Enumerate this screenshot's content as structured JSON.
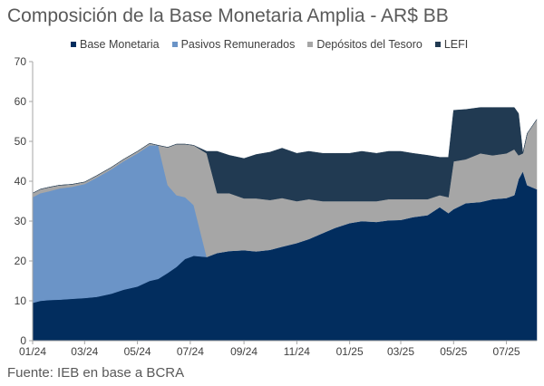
{
  "title": "Composición de la Base Monetaria Amplia - AR$ BB",
  "source": "Fuente: IEB en base a BCRA",
  "colors": {
    "base_monetaria": "#022d5e",
    "pasivos_remunerados": "#6b94c7",
    "depositos_tesoro": "#a6a6a6",
    "lefi": "#213a52",
    "axis": "#a6a6a6"
  },
  "chart_data": {
    "type": "area",
    "stacked": true,
    "title": "Composición de la Base Monetaria Amplia - AR$ BB",
    "xlabel": "",
    "ylabel": "",
    "ylim": [
      0,
      70
    ],
    "yticks": [
      0,
      10,
      20,
      30,
      40,
      50,
      60,
      70
    ],
    "xlim": [
      "2024-01-01",
      "2025-08-05"
    ],
    "xticks": [
      "01/24",
      "03/24",
      "05/24",
      "07/24",
      "09/24",
      "11/24",
      "01/25",
      "03/25",
      "05/25",
      "07/25"
    ],
    "xtick_dates": [
      "2024-01-01",
      "2024-03-01",
      "2024-05-01",
      "2024-07-01",
      "2024-09-01",
      "2024-11-01",
      "2025-01-01",
      "2025-03-01",
      "2025-05-01",
      "2025-07-01"
    ],
    "grid": false,
    "legend": "top",
    "series": [
      {
        "name": "Base Monetaria",
        "color": "#022d5e",
        "points": [
          [
            "2024-01-01",
            9.5
          ],
          [
            "2024-01-10",
            10.0
          ],
          [
            "2024-01-20",
            10.2
          ],
          [
            "2024-02-01",
            10.3
          ],
          [
            "2024-02-15",
            10.5
          ],
          [
            "2024-03-01",
            10.7
          ],
          [
            "2024-03-15",
            11.0
          ],
          [
            "2024-04-01",
            11.8
          ],
          [
            "2024-04-15",
            12.8
          ],
          [
            "2024-05-01",
            13.6
          ],
          [
            "2024-05-15",
            15.0
          ],
          [
            "2024-05-25",
            15.5
          ],
          [
            "2024-06-05",
            17.0
          ],
          [
            "2024-06-15",
            18.5
          ],
          [
            "2024-06-25",
            20.5
          ],
          [
            "2024-07-05",
            21.3
          ],
          [
            "2024-07-20",
            21.0
          ],
          [
            "2024-08-01",
            22.0
          ],
          [
            "2024-08-15",
            22.5
          ],
          [
            "2024-09-01",
            22.7
          ],
          [
            "2024-09-15",
            22.4
          ],
          [
            "2024-10-01",
            22.8
          ],
          [
            "2024-10-15",
            23.6
          ],
          [
            "2024-11-01",
            24.5
          ],
          [
            "2024-11-15",
            25.5
          ],
          [
            "2024-12-01",
            27.0
          ],
          [
            "2024-12-15",
            28.3
          ],
          [
            "2025-01-01",
            29.5
          ],
          [
            "2025-01-15",
            30.0
          ],
          [
            "2025-02-01",
            29.8
          ],
          [
            "2025-02-15",
            30.2
          ],
          [
            "2025-03-01",
            30.3
          ],
          [
            "2025-03-15",
            31.0
          ],
          [
            "2025-04-01",
            31.5
          ],
          [
            "2025-04-15",
            33.5
          ],
          [
            "2025-04-25",
            32.0
          ],
          [
            "2025-05-01",
            33.0
          ],
          [
            "2025-05-15",
            34.5
          ],
          [
            "2025-06-01",
            34.8
          ],
          [
            "2025-06-15",
            35.5
          ],
          [
            "2025-07-01",
            35.8
          ],
          [
            "2025-07-10",
            36.5
          ],
          [
            "2025-07-15",
            40.5
          ],
          [
            "2025-07-20",
            42.5
          ],
          [
            "2025-07-25",
            39.0
          ],
          [
            "2025-08-05",
            38.0
          ]
        ]
      },
      {
        "name": "Pasivos Remunerados",
        "color": "#6b94c7",
        "points": [
          [
            "2024-01-01",
            26.5
          ],
          [
            "2024-01-10",
            27.0
          ],
          [
            "2024-01-20",
            27.3
          ],
          [
            "2024-02-01",
            27.9
          ],
          [
            "2024-02-15",
            28.1
          ],
          [
            "2024-03-01",
            28.6
          ],
          [
            "2024-03-15",
            29.9
          ],
          [
            "2024-04-01",
            31.2
          ],
          [
            "2024-04-15",
            32.2
          ],
          [
            "2024-05-01",
            33.4
          ],
          [
            "2024-05-15",
            34.0
          ],
          [
            "2024-05-25",
            33.5
          ],
          [
            "2024-06-05",
            22.0
          ],
          [
            "2024-06-15",
            18.0
          ],
          [
            "2024-06-25",
            15.5
          ],
          [
            "2024-07-05",
            12.7
          ],
          [
            "2024-07-20",
            0
          ],
          [
            "2024-08-01",
            0
          ],
          [
            "2024-08-15",
            0
          ],
          [
            "2024-09-01",
            0
          ],
          [
            "2024-09-15",
            0
          ],
          [
            "2024-10-01",
            0
          ],
          [
            "2024-10-15",
            0
          ],
          [
            "2024-11-01",
            0
          ],
          [
            "2024-11-15",
            0
          ],
          [
            "2024-12-01",
            0
          ],
          [
            "2024-12-15",
            0
          ],
          [
            "2025-01-01",
            0
          ],
          [
            "2025-01-15",
            0
          ],
          [
            "2025-02-01",
            0
          ],
          [
            "2025-02-15",
            0
          ],
          [
            "2025-03-01",
            0
          ],
          [
            "2025-03-15",
            0
          ],
          [
            "2025-04-01",
            0
          ],
          [
            "2025-04-15",
            0
          ],
          [
            "2025-04-25",
            0
          ],
          [
            "2025-05-01",
            0
          ],
          [
            "2025-05-15",
            0
          ],
          [
            "2025-06-01",
            0
          ],
          [
            "2025-06-15",
            0
          ],
          [
            "2025-07-01",
            0
          ],
          [
            "2025-07-10",
            0
          ],
          [
            "2025-07-15",
            0
          ],
          [
            "2025-07-20",
            0
          ],
          [
            "2025-07-25",
            0
          ],
          [
            "2025-08-05",
            0
          ]
        ]
      },
      {
        "name": "Depósitos del Tesoro",
        "color": "#a6a6a6",
        "points": [
          [
            "2024-01-01",
            1.0
          ],
          [
            "2024-01-10",
            1.0
          ],
          [
            "2024-01-20",
            1.0
          ],
          [
            "2024-02-01",
            0.8
          ],
          [
            "2024-02-15",
            0.6
          ],
          [
            "2024-03-01",
            0.5
          ],
          [
            "2024-03-15",
            0.5
          ],
          [
            "2024-04-01",
            0.5
          ],
          [
            "2024-04-15",
            0.5
          ],
          [
            "2024-05-01",
            0.5
          ],
          [
            "2024-05-15",
            0.5
          ],
          [
            "2024-05-25",
            0.0
          ],
          [
            "2024-06-05",
            9.5
          ],
          [
            "2024-06-15",
            12.8
          ],
          [
            "2024-06-25",
            13.3
          ],
          [
            "2024-07-05",
            15.0
          ],
          [
            "2024-07-20",
            26.0
          ],
          [
            "2024-08-01",
            15.0
          ],
          [
            "2024-08-15",
            14.5
          ],
          [
            "2024-09-01",
            13.0
          ],
          [
            "2024-09-15",
            13.3
          ],
          [
            "2024-10-01",
            12.5
          ],
          [
            "2024-10-15",
            12.2
          ],
          [
            "2024-11-01",
            10.5
          ],
          [
            "2024-11-15",
            10.0
          ],
          [
            "2024-12-01",
            8.0
          ],
          [
            "2024-12-15",
            6.7
          ],
          [
            "2025-01-01",
            5.5
          ],
          [
            "2025-01-15",
            5.0
          ],
          [
            "2025-02-01",
            5.2
          ],
          [
            "2025-02-15",
            5.3
          ],
          [
            "2025-03-01",
            5.2
          ],
          [
            "2025-03-15",
            4.5
          ],
          [
            "2025-04-01",
            4.0
          ],
          [
            "2025-04-15",
            3.0
          ],
          [
            "2025-04-25",
            4.0
          ],
          [
            "2025-05-01",
            12.0
          ],
          [
            "2025-05-15",
            11.0
          ],
          [
            "2025-06-01",
            12.2
          ],
          [
            "2025-06-15",
            11.0
          ],
          [
            "2025-07-01",
            11.2
          ],
          [
            "2025-07-10",
            11.5
          ],
          [
            "2025-07-15",
            6.0
          ],
          [
            "2025-07-20",
            4.5
          ],
          [
            "2025-07-25",
            13.0
          ],
          [
            "2025-08-05",
            17.5
          ]
        ]
      },
      {
        "name": "LEFI",
        "color": "#213a52",
        "points": [
          [
            "2024-01-01",
            0
          ],
          [
            "2024-01-10",
            0
          ],
          [
            "2024-01-20",
            0
          ],
          [
            "2024-02-01",
            0
          ],
          [
            "2024-02-15",
            0
          ],
          [
            "2024-03-01",
            0
          ],
          [
            "2024-03-15",
            0
          ],
          [
            "2024-04-01",
            0
          ],
          [
            "2024-04-15",
            0
          ],
          [
            "2024-05-01",
            0
          ],
          [
            "2024-05-15",
            0
          ],
          [
            "2024-05-25",
            0
          ],
          [
            "2024-06-05",
            0
          ],
          [
            "2024-06-15",
            0
          ],
          [
            "2024-06-25",
            0
          ],
          [
            "2024-07-05",
            0
          ],
          [
            "2024-07-20",
            0.5
          ],
          [
            "2024-08-01",
            10.5
          ],
          [
            "2024-08-15",
            9.5
          ],
          [
            "2024-09-01",
            10.0
          ],
          [
            "2024-09-15",
            11.0
          ],
          [
            "2024-10-01",
            12.0
          ],
          [
            "2024-10-15",
            12.5
          ],
          [
            "2024-11-01",
            12.0
          ],
          [
            "2024-11-15",
            12.0
          ],
          [
            "2024-12-01",
            12.0
          ],
          [
            "2024-12-15",
            12.0
          ],
          [
            "2025-01-01",
            12.0
          ],
          [
            "2025-01-15",
            12.5
          ],
          [
            "2025-02-01",
            12.0
          ],
          [
            "2025-02-15",
            12.0
          ],
          [
            "2025-03-01",
            12.0
          ],
          [
            "2025-03-15",
            11.5
          ],
          [
            "2025-04-01",
            11.0
          ],
          [
            "2025-04-15",
            9.5
          ],
          [
            "2025-04-25",
            10.0
          ],
          [
            "2025-05-01",
            12.8
          ],
          [
            "2025-05-15",
            12.5
          ],
          [
            "2025-06-01",
            11.5
          ],
          [
            "2025-06-15",
            12.0
          ],
          [
            "2025-07-01",
            11.5
          ],
          [
            "2025-07-10",
            10.5
          ],
          [
            "2025-07-15",
            10.5
          ],
          [
            "2025-07-20",
            0
          ],
          [
            "2025-07-25",
            0
          ],
          [
            "2025-08-05",
            0
          ]
        ]
      }
    ]
  }
}
